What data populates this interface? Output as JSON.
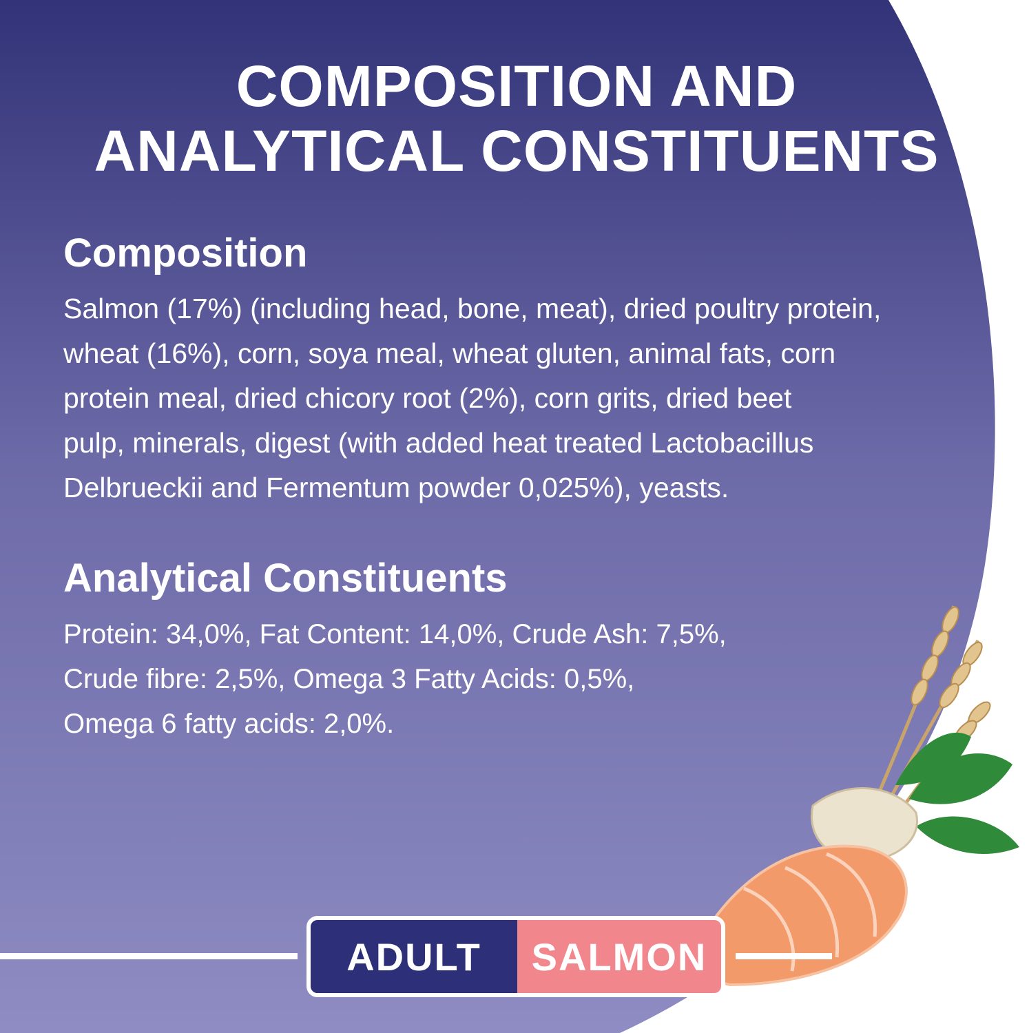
{
  "title": {
    "line1": "COMPOSITION AND",
    "line2": "ANALYTICAL CONSTITUENTS"
  },
  "composition": {
    "heading": "Composition",
    "lines": [
      "Salmon (17%) (including head, bone, meat), dried poultry protein,",
      "wheat (16%), corn, soya meal, wheat gluten, animal fats, corn",
      "protein meal, dried chicory root (2%), corn grits, dried beet",
      "pulp, minerals, digest (with added heat treated Lactobacillus",
      "Delbrueckii and Fermentum powder 0,025%), yeasts."
    ]
  },
  "analytical": {
    "heading": "Analytical Constituents",
    "lines": [
      "Protein: 34,0%, Fat Content: 14,0%, Crude Ash: 7,5%,",
      "Crude fibre: 2,5%, Omega 3 Fatty Acids: 0,5%,",
      "Omega 6 fatty acids: 2,0%."
    ]
  },
  "badge": {
    "left": "ADULT",
    "right": "SALMON"
  },
  "colors": {
    "bg_top": "#323378",
    "bg_bottom": "#8e8cc2",
    "badge_navy": "#2d2f78",
    "badge_pink": "#f2868d"
  }
}
